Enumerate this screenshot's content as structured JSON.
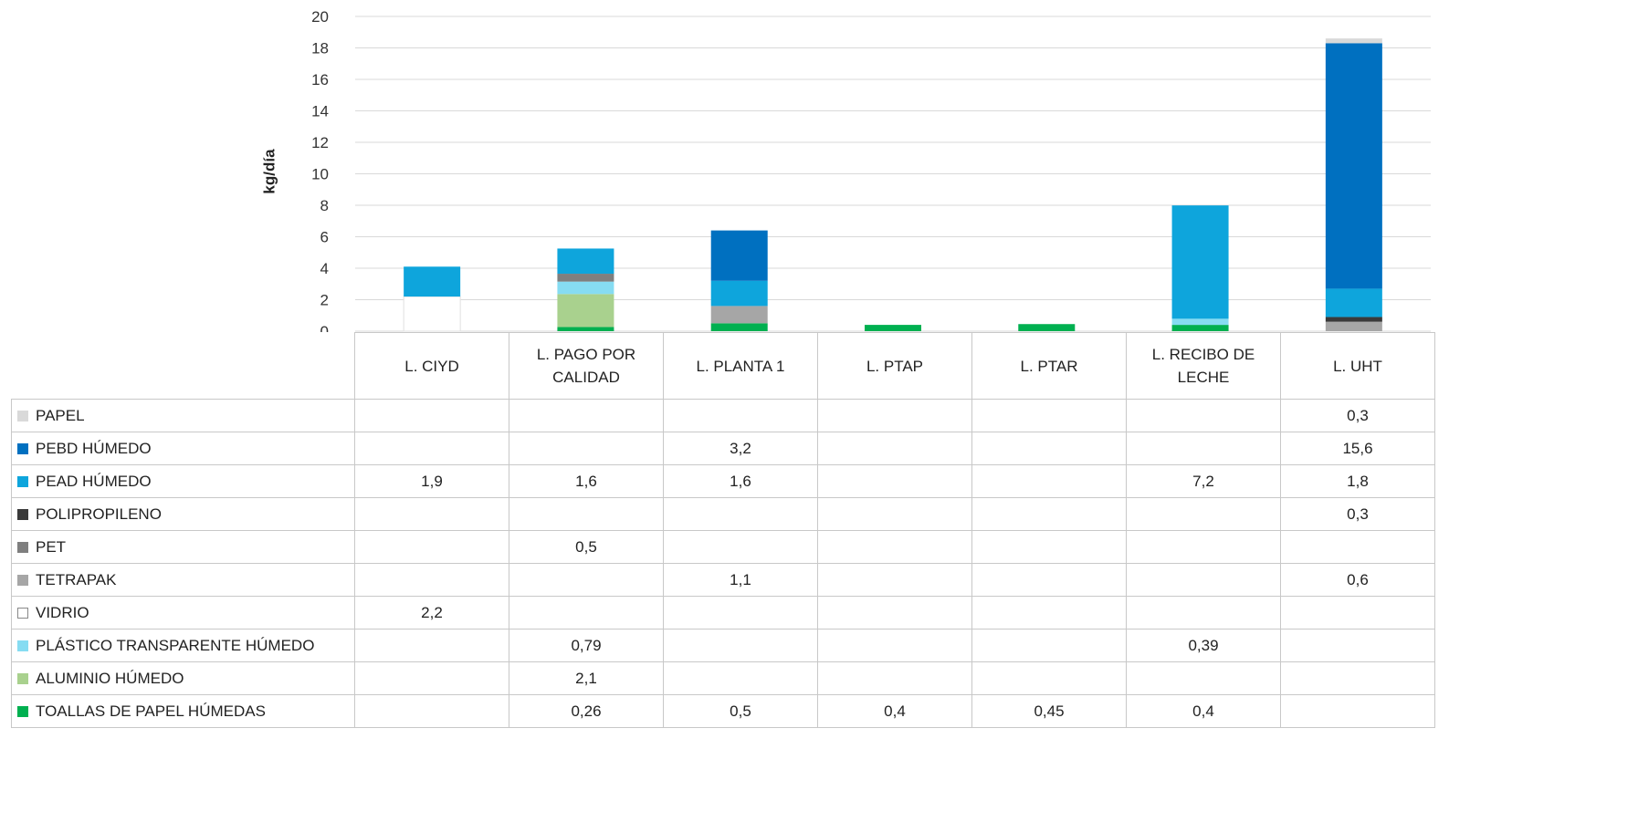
{
  "chart_data": {
    "type": "bar",
    "stacked": true,
    "ylabel": "kg/día",
    "ylim": [
      0,
      20
    ],
    "yticks": [
      0,
      2,
      4,
      6,
      8,
      10,
      12,
      14,
      16,
      18,
      20
    ],
    "grid": true,
    "legend": "data table below chart",
    "categories": [
      "L. CIYD",
      "L. PAGO POR CALIDAD",
      "L. PLANTA 1",
      "L. PTAP",
      "L. PTAR",
      "L. RECIBO DE LECHE",
      "L. UHT"
    ],
    "categories_display": [
      [
        "L. CIYD"
      ],
      [
        "L. PAGO POR",
        "CALIDAD"
      ],
      [
        "L. PLANTA 1"
      ],
      [
        "L. PTAP"
      ],
      [
        "L. PTAR"
      ],
      [
        "L. RECIBO DE",
        "LECHE"
      ],
      [
        "L. UHT"
      ]
    ],
    "series": [
      {
        "name": "TOALLAS DE PAPEL HÚMEDAS",
        "color": "#00b050",
        "values": [
          null,
          0.26,
          0.5,
          0.4,
          0.45,
          0.4,
          null
        ],
        "labels": [
          "",
          "0,26",
          "0,5",
          "0,4",
          "0,45",
          "0,4",
          ""
        ]
      },
      {
        "name": "ALUMINIO HÚMEDO",
        "color": "#a9d18e",
        "values": [
          null,
          2.1,
          null,
          null,
          null,
          null,
          null
        ],
        "labels": [
          "",
          "2,1",
          "",
          "",
          "",
          "",
          ""
        ]
      },
      {
        "name": "PLÁSTICO TRANSPARENTE HÚMEDO",
        "color": "#86dcf2",
        "values": [
          null,
          0.79,
          null,
          null,
          null,
          0.39,
          null
        ],
        "labels": [
          "",
          "0,79",
          "",
          "",
          "",
          "0,39",
          ""
        ]
      },
      {
        "name": "VIDRIO",
        "color": "#ffffff",
        "values": [
          2.2,
          null,
          null,
          null,
          null,
          null,
          null
        ],
        "labels": [
          "2,2",
          "",
          "",
          "",
          "",
          "",
          ""
        ]
      },
      {
        "name": "TETRAPAK",
        "color": "#a6a6a6",
        "values": [
          null,
          null,
          1.1,
          null,
          null,
          null,
          0.6
        ],
        "labels": [
          "",
          "",
          "1,1",
          "",
          "",
          "",
          "0,6"
        ]
      },
      {
        "name": "PET",
        "color": "#7f7f7f",
        "values": [
          null,
          0.5,
          null,
          null,
          null,
          null,
          null
        ],
        "labels": [
          "",
          "0,5",
          "",
          "",
          "",
          "",
          ""
        ]
      },
      {
        "name": "POLIPROPILENO",
        "color": "#3a3a3a",
        "values": [
          null,
          null,
          null,
          null,
          null,
          null,
          0.3
        ],
        "labels": [
          "",
          "",
          "",
          "",
          "",
          "",
          "0,3"
        ]
      },
      {
        "name": "PEAD HÚMEDO",
        "color": "#0ea5dc",
        "values": [
          1.9,
          1.6,
          1.6,
          null,
          null,
          7.2,
          1.8
        ],
        "labels": [
          "1,9",
          "1,6",
          "1,6",
          "",
          "",
          "7,2",
          "1,8"
        ]
      },
      {
        "name": "PEBD HÚMEDO",
        "color": "#0070c0",
        "values": [
          null,
          null,
          3.2,
          null,
          null,
          null,
          15.6
        ],
        "labels": [
          "",
          "",
          "3,2",
          "",
          "",
          "",
          "15,6"
        ]
      },
      {
        "name": "PAPEL",
        "color": "#d9d9d9",
        "values": [
          null,
          null,
          null,
          null,
          null,
          null,
          0.3
        ],
        "labels": [
          "",
          "",
          "",
          "",
          "",
          "",
          "0,3"
        ]
      }
    ],
    "table_order": [
      "PAPEL",
      "PEBD HÚMEDO",
      "PEAD HÚMEDO",
      "POLIPROPILENO",
      "PET",
      "TETRAPAK",
      "VIDRIO",
      "PLÁSTICO TRANSPARENTE HÚMEDO",
      "ALUMINIO HÚMEDO",
      "TOALLAS DE PAPEL HÚMEDAS"
    ]
  }
}
